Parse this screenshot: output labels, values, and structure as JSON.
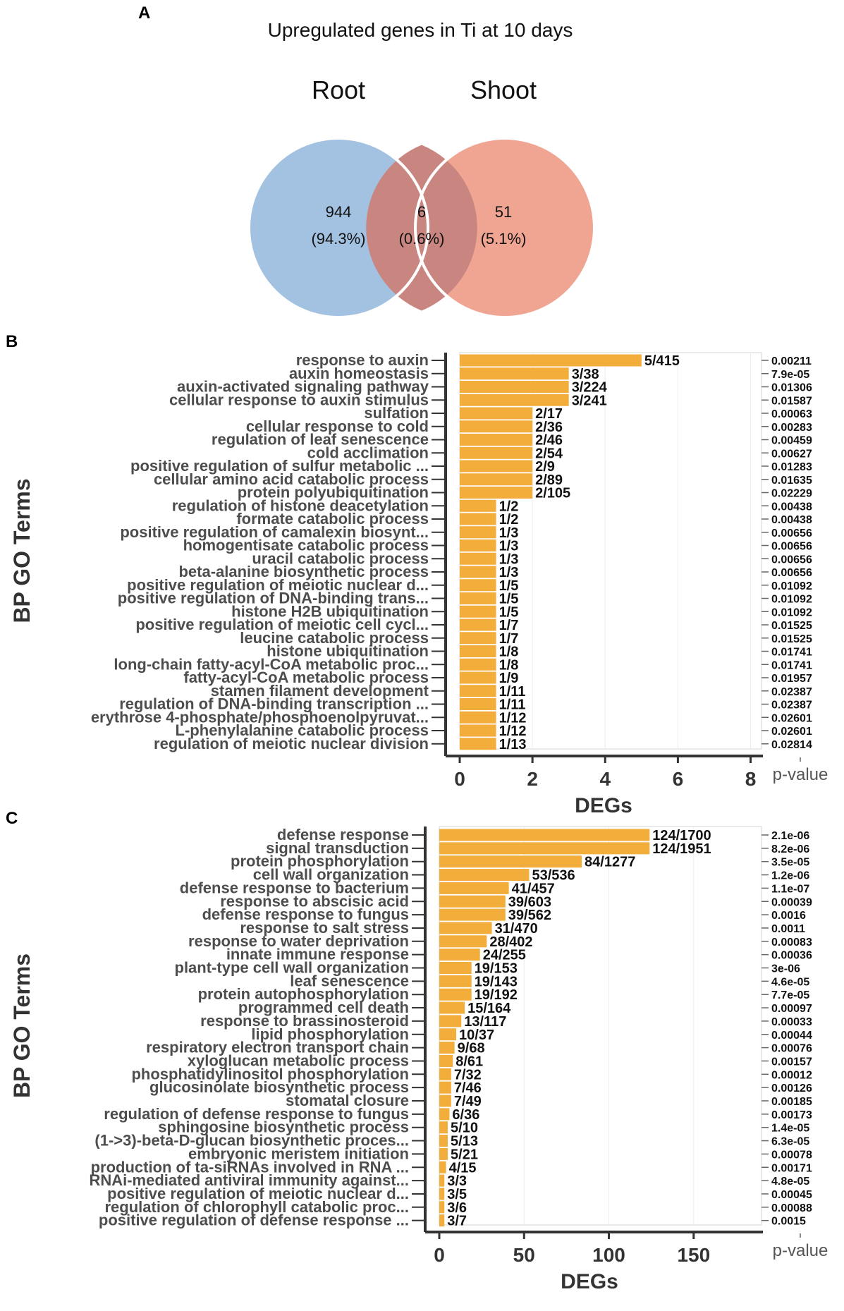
{
  "chart_data": [
    {
      "type": "venn",
      "panel": "A",
      "title": "Upregulated genes in Ti at 10 days",
      "sets": [
        {
          "name": "Root",
          "only_count": "944",
          "only_percent": "(94.3%)",
          "color": "#a3c1e0"
        },
        {
          "name": "Shoot",
          "only_count": "51",
          "only_percent": "(5.1%)",
          "color": "#f0a593"
        }
      ],
      "overlap": {
        "count": "6",
        "percent": "(0.6%)",
        "color": "#c98681"
      }
    },
    {
      "type": "bar",
      "orientation": "horizontal",
      "panel": "B",
      "ylabel": "BP GO Terms",
      "xlabel": "DEGs",
      "pvalue_label": "p-value",
      "xlim": [
        0,
        8.3
      ],
      "xticks": [
        "0",
        "2",
        "4",
        "6",
        "8"
      ],
      "bar_color": "#f2ad3a",
      "categories": [
        "response to auxin",
        "auxin homeostasis",
        "auxin-activated signaling pathway",
        "cellular response to auxin stimulus",
        "sulfation",
        "cellular response to cold",
        "regulation of leaf senescence",
        "cold acclimation",
        "positive regulation of sulfur metabolic ...",
        "cellular amino acid catabolic process",
        "protein polyubiquitination",
        "regulation of histone deacetylation",
        "formate catabolic process",
        "positive regulation of camalexin biosynt...",
        "homogentisate catabolic process",
        "uracil catabolic process",
        "beta-alanine biosynthetic process",
        "positive regulation of meiotic nuclear d...",
        "positive regulation of DNA-binding trans...",
        "histone H2B ubiquitination",
        "positive regulation of meiotic cell cycl...",
        "leucine catabolic process",
        "histone ubiquitination",
        "long-chain fatty-acyl-CoA metabolic proc...",
        "fatty-acyl-CoA metabolic process",
        "stamen filament development",
        "regulation of DNA-binding transcription ...",
        "erythrose 4-phosphate/phosphoenolpyruvat...",
        "L-phenylalanine catabolic process",
        "regulation of meiotic nuclear division"
      ],
      "values": [
        5,
        3,
        3,
        3,
        2,
        2,
        2,
        2,
        2,
        2,
        2,
        1,
        1,
        1,
        1,
        1,
        1,
        1,
        1,
        1,
        1,
        1,
        1,
        1,
        1,
        1,
        1,
        1,
        1,
        1
      ],
      "labels": [
        "5/415",
        "3/38",
        "3/224",
        "3/241",
        "2/17",
        "2/36",
        "2/46",
        "2/54",
        "2/9",
        "2/89",
        "2/105",
        "1/2",
        "1/2",
        "1/3",
        "1/3",
        "1/3",
        "1/3",
        "1/5",
        "1/5",
        "1/5",
        "1/7",
        "1/7",
        "1/8",
        "1/8",
        "1/9",
        "1/11",
        "1/11",
        "1/12",
        "1/12",
        "1/13"
      ],
      "pvalues": [
        "0.00211",
        "7.9e-05",
        "0.01306",
        "0.01587",
        "0.00063",
        "0.00283",
        "0.00459",
        "0.00627",
        "0.01283",
        "0.01635",
        "0.02229",
        "0.00438",
        "0.00438",
        "0.00656",
        "0.00656",
        "0.00656",
        "0.00656",
        "0.01092",
        "0.01092",
        "0.01092",
        "0.01525",
        "0.01525",
        "0.01741",
        "0.01741",
        "0.01957",
        "0.02387",
        "0.02387",
        "0.02601",
        "0.02601",
        "0.02814"
      ]
    },
    {
      "type": "bar",
      "orientation": "horizontal",
      "panel": "C",
      "ylabel": "BP GO Terms",
      "xlabel": "DEGs",
      "pvalue_label": "p-value",
      "xlim": [
        0,
        190
      ],
      "xticks": [
        "0",
        "50",
        "100",
        "150"
      ],
      "bar_color": "#f2ad3a",
      "categories": [
        "defense response",
        "signal transduction",
        "protein phosphorylation",
        "cell wall organization",
        "defense response to bacterium",
        "response to abscisic acid",
        "defense response to fungus",
        "response to salt stress",
        "response to water deprivation",
        "innate immune response",
        "plant-type cell wall organization",
        "leaf senescence",
        "protein autophosphorylation",
        "programmed cell death",
        "response to brassinosteroid",
        "lipid phosphorylation",
        "respiratory electron transport chain",
        "xyloglucan metabolic process",
        "phosphatidylinositol phosphorylation",
        "glucosinolate biosynthetic process",
        "stomatal closure",
        "regulation of defense response to fungus",
        "sphingosine biosynthetic process",
        "(1->3)-beta-D-glucan biosynthetic proces...",
        "embryonic meristem initiation",
        "production of ta-siRNAs involved in RNA ...",
        "RNAi-mediated antiviral immunity against...",
        "positive regulation of meiotic nuclear d...",
        "regulation of chlorophyll catabolic proc...",
        "positive regulation of defense response ..."
      ],
      "values": [
        124,
        124,
        84,
        53,
        41,
        39,
        39,
        31,
        28,
        24,
        19,
        19,
        19,
        15,
        13,
        10,
        9,
        8,
        7,
        7,
        7,
        6,
        5,
        5,
        5,
        4,
        3,
        3,
        3,
        3
      ],
      "labels": [
        "124/1700",
        "124/1951",
        "84/1277",
        "53/536",
        "41/457",
        "39/603",
        "39/562",
        "31/470",
        "28/402",
        "24/255",
        "19/153",
        "19/143",
        "19/192",
        "15/164",
        "13/117",
        "10/37",
        "9/68",
        "8/61",
        "7/32",
        "7/46",
        "7/49",
        "6/36",
        "5/10",
        "5/13",
        "5/21",
        "4/15",
        "3/3",
        "3/5",
        "3/6",
        "3/7"
      ],
      "pvalues": [
        "2.1e-06",
        "8.2e-06",
        "3.5e-05",
        "1.2e-06",
        "1.1e-07",
        "0.00039",
        "0.0016",
        "0.0011",
        "0.00083",
        "0.00036",
        "3e-06",
        "4.6e-05",
        "7.7e-05",
        "0.00097",
        "0.00033",
        "0.00044",
        "0.00076",
        "0.00157",
        "0.00012",
        "0.00126",
        "0.00185",
        "0.00173",
        "1.4e-05",
        "6.3e-05",
        "0.00078",
        "0.00171",
        "4.8e-05",
        "0.00045",
        "0.00088",
        "0.0015"
      ]
    }
  ]
}
